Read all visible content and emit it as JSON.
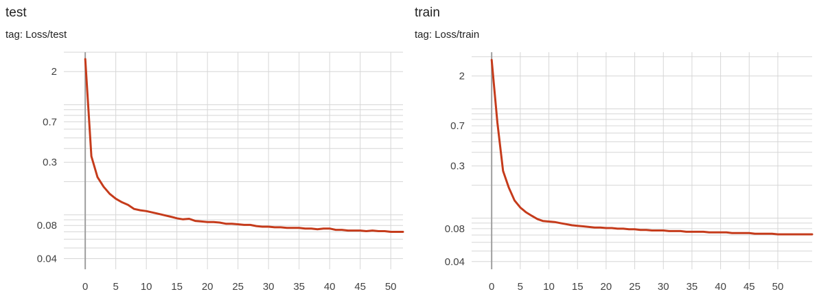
{
  "chart_data": [
    {
      "type": "line",
      "title": "test",
      "subtitle": "tag: Loss/test",
      "yscale": "log",
      "grid": true,
      "xticks": [
        "0",
        "5",
        "10",
        "15",
        "20",
        "25",
        "30",
        "35",
        "40",
        "45",
        "50"
      ],
      "yticks": [
        "2",
        "0.7",
        "0.3",
        "0.08",
        "0.04"
      ],
      "xlim": [
        -3.5,
        52
      ],
      "ylim": [
        0.032,
        3.0
      ],
      "color": "#c53b1b",
      "series": [
        {
          "x": [
            0,
            1,
            2,
            3,
            4,
            5,
            6,
            7,
            8,
            9,
            10,
            11,
            12,
            13,
            14,
            15,
            16,
            17,
            18,
            19,
            20,
            21,
            22,
            23,
            24,
            25,
            26,
            27,
            28,
            29,
            30,
            31,
            32,
            33,
            34,
            35,
            36,
            37,
            38,
            39,
            40,
            41,
            42,
            43,
            44,
            45,
            46,
            47,
            48,
            49,
            50,
            51,
            52
          ],
          "y": [
            2.6,
            0.34,
            0.22,
            0.18,
            0.155,
            0.14,
            0.13,
            0.123,
            0.113,
            0.11,
            0.108,
            0.105,
            0.102,
            0.099,
            0.096,
            0.093,
            0.091,
            0.092,
            0.088,
            0.087,
            0.086,
            0.086,
            0.085,
            0.083,
            0.083,
            0.082,
            0.081,
            0.081,
            0.079,
            0.078,
            0.078,
            0.077,
            0.077,
            0.076,
            0.076,
            0.076,
            0.075,
            0.075,
            0.074,
            0.075,
            0.075,
            0.073,
            0.073,
            0.072,
            0.072,
            0.072,
            0.071,
            0.072,
            0.071,
            0.071,
            0.07,
            0.07,
            0.07
          ]
        }
      ]
    },
    {
      "type": "line",
      "title": "train",
      "subtitle": "tag: Loss/train",
      "yscale": "log",
      "grid": true,
      "xticks": [
        "0",
        "5",
        "10",
        "15",
        "20",
        "25",
        "30",
        "35",
        "40",
        "45",
        "50"
      ],
      "yticks": [
        "2",
        "0.7",
        "0.3",
        "0.08",
        "0.04"
      ],
      "xlim": [
        -3.5,
        56
      ],
      "ylim": [
        0.034,
        3.3
      ],
      "color": "#c53b1b",
      "series": [
        {
          "x": [
            0,
            1,
            2,
            3,
            4,
            5,
            6,
            7,
            8,
            9,
            10,
            11,
            12,
            13,
            14,
            15,
            16,
            17,
            18,
            19,
            20,
            21,
            22,
            23,
            24,
            25,
            26,
            27,
            28,
            29,
            30,
            31,
            32,
            33,
            34,
            35,
            36,
            37,
            38,
            39,
            40,
            41,
            42,
            43,
            44,
            45,
            46,
            47,
            48,
            49,
            50,
            51,
            52,
            53,
            54,
            55,
            56
          ],
          "y": [
            2.8,
            0.75,
            0.27,
            0.19,
            0.145,
            0.125,
            0.113,
            0.105,
            0.098,
            0.094,
            0.093,
            0.092,
            0.09,
            0.088,
            0.086,
            0.085,
            0.084,
            0.083,
            0.082,
            0.082,
            0.081,
            0.081,
            0.08,
            0.08,
            0.079,
            0.079,
            0.078,
            0.078,
            0.077,
            0.077,
            0.077,
            0.076,
            0.076,
            0.076,
            0.075,
            0.075,
            0.075,
            0.075,
            0.074,
            0.074,
            0.074,
            0.074,
            0.073,
            0.073,
            0.073,
            0.073,
            0.072,
            0.072,
            0.072,
            0.072,
            0.071,
            0.071,
            0.071,
            0.071,
            0.071,
            0.071,
            0.071
          ]
        }
      ]
    }
  ]
}
